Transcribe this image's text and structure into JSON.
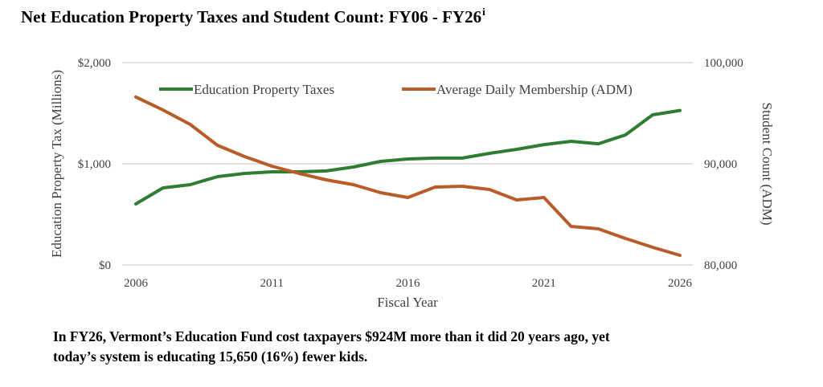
{
  "title": {
    "text": "Net Education Property Taxes and Student Count: FY06 - FY26",
    "footnote_marker": "i"
  },
  "caption": {
    "line1": "In FY26, Vermont’s Education Fund cost taxpayers $924M more than it did 20 years ago, yet",
    "line2": "today’s system is educating 15,650 (16%) fewer kids."
  },
  "chart_data": {
    "type": "line",
    "title": "Net Education Property Taxes and Student Count: FY06 - FY26",
    "xlabel": "Fiscal Year",
    "ylabel": "Education Property Tax (Millions)",
    "y2label": "Student Count (ADM)",
    "x": [
      2006,
      2007,
      2008,
      2009,
      2010,
      2011,
      2012,
      2013,
      2014,
      2015,
      2016,
      2017,
      2018,
      2019,
      2020,
      2021,
      2022,
      2023,
      2024,
      2025,
      2026
    ],
    "xlim": [
      2006,
      2026
    ],
    "x_ticks": [
      2006,
      2011,
      2016,
      2021,
      2026
    ],
    "x_tick_labels": [
      "2006",
      "2011",
      "2016",
      "2021",
      "2026"
    ],
    "ylim": [
      0,
      2000
    ],
    "y_ticks": [
      0,
      1000,
      2000
    ],
    "y_tick_labels": [
      "$0",
      "$1,000",
      "$2,000"
    ],
    "y2lim": [
      80000,
      100000
    ],
    "y2_ticks": [
      80000,
      90000,
      100000
    ],
    "y2_tick_labels": [
      "80,000",
      "90,000",
      "100,000"
    ],
    "grid": true,
    "legend_position": "top",
    "series": [
      {
        "name": "Education Property Taxes",
        "axis": "left",
        "color": "#2e7d32",
        "values": [
          603,
          762,
          794,
          873,
          905,
          921,
          921,
          929,
          968,
          1024,
          1048,
          1056,
          1056,
          1103,
          1143,
          1190,
          1222,
          1198,
          1286,
          1484,
          1527
        ]
      },
      {
        "name": "Average Daily Membership (ADM)",
        "axis": "right",
        "color": "#b85c2a",
        "values": [
          96600,
          95317,
          93889,
          91825,
          90714,
          89762,
          89048,
          88413,
          87937,
          87143,
          86667,
          87698,
          87778,
          87460,
          86429,
          86667,
          83810,
          83571,
          82619,
          81746,
          80950
        ]
      }
    ]
  }
}
